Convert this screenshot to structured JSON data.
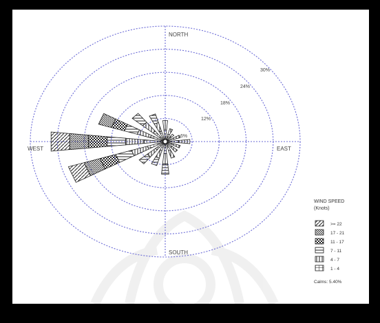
{
  "chart_data": {
    "type": "wind-rose",
    "title": "",
    "directions": {
      "north": "NORTH",
      "south": "SOUTH",
      "east": "EAST",
      "west": "WEST"
    },
    "rings": [
      "6%",
      "12%",
      "18%",
      "24%",
      "30%"
    ],
    "ring_values": [
      6,
      12,
      18,
      24,
      30
    ],
    "legend": {
      "title_line1": "WIND SPEED",
      "title_line2": "(Knots)",
      "calms": "Calms: 5.40%",
      "bins": [
        {
          "label": ">= 22",
          "pattern": "diag-hatch"
        },
        {
          "label": "17 - 21",
          "pattern": "dense-diag"
        },
        {
          "label": "11 - 17",
          "pattern": "checker"
        },
        {
          "label": "7 - 11",
          "pattern": "horizontal"
        },
        {
          "label": "4 - 7",
          "pattern": "vertical"
        },
        {
          "label": "1 - 4",
          "pattern": "grid"
        }
      ]
    },
    "petals": [
      {
        "dir": 0,
        "total": 5
      },
      {
        "dir": 22.5,
        "total": 3
      },
      {
        "dir": 45,
        "total": 2
      },
      {
        "dir": 67.5,
        "total": 3
      },
      {
        "dir": 90,
        "total": 5
      },
      {
        "dir": 112.5,
        "total": 3
      },
      {
        "dir": 135,
        "total": 3
      },
      {
        "dir": 157.5,
        "total": 4
      },
      {
        "dir": 180,
        "total": 8
      },
      {
        "dir": 202.5,
        "total": 6
      },
      {
        "dir": 225,
        "total": 7
      },
      {
        "dir": 247.5,
        "total": 22
      },
      {
        "dir": 270,
        "total": 25
      },
      {
        "dir": 292.5,
        "total": 15
      },
      {
        "dir": 315,
        "total": 9
      },
      {
        "dir": 337.5,
        "total": 7
      }
    ]
  }
}
